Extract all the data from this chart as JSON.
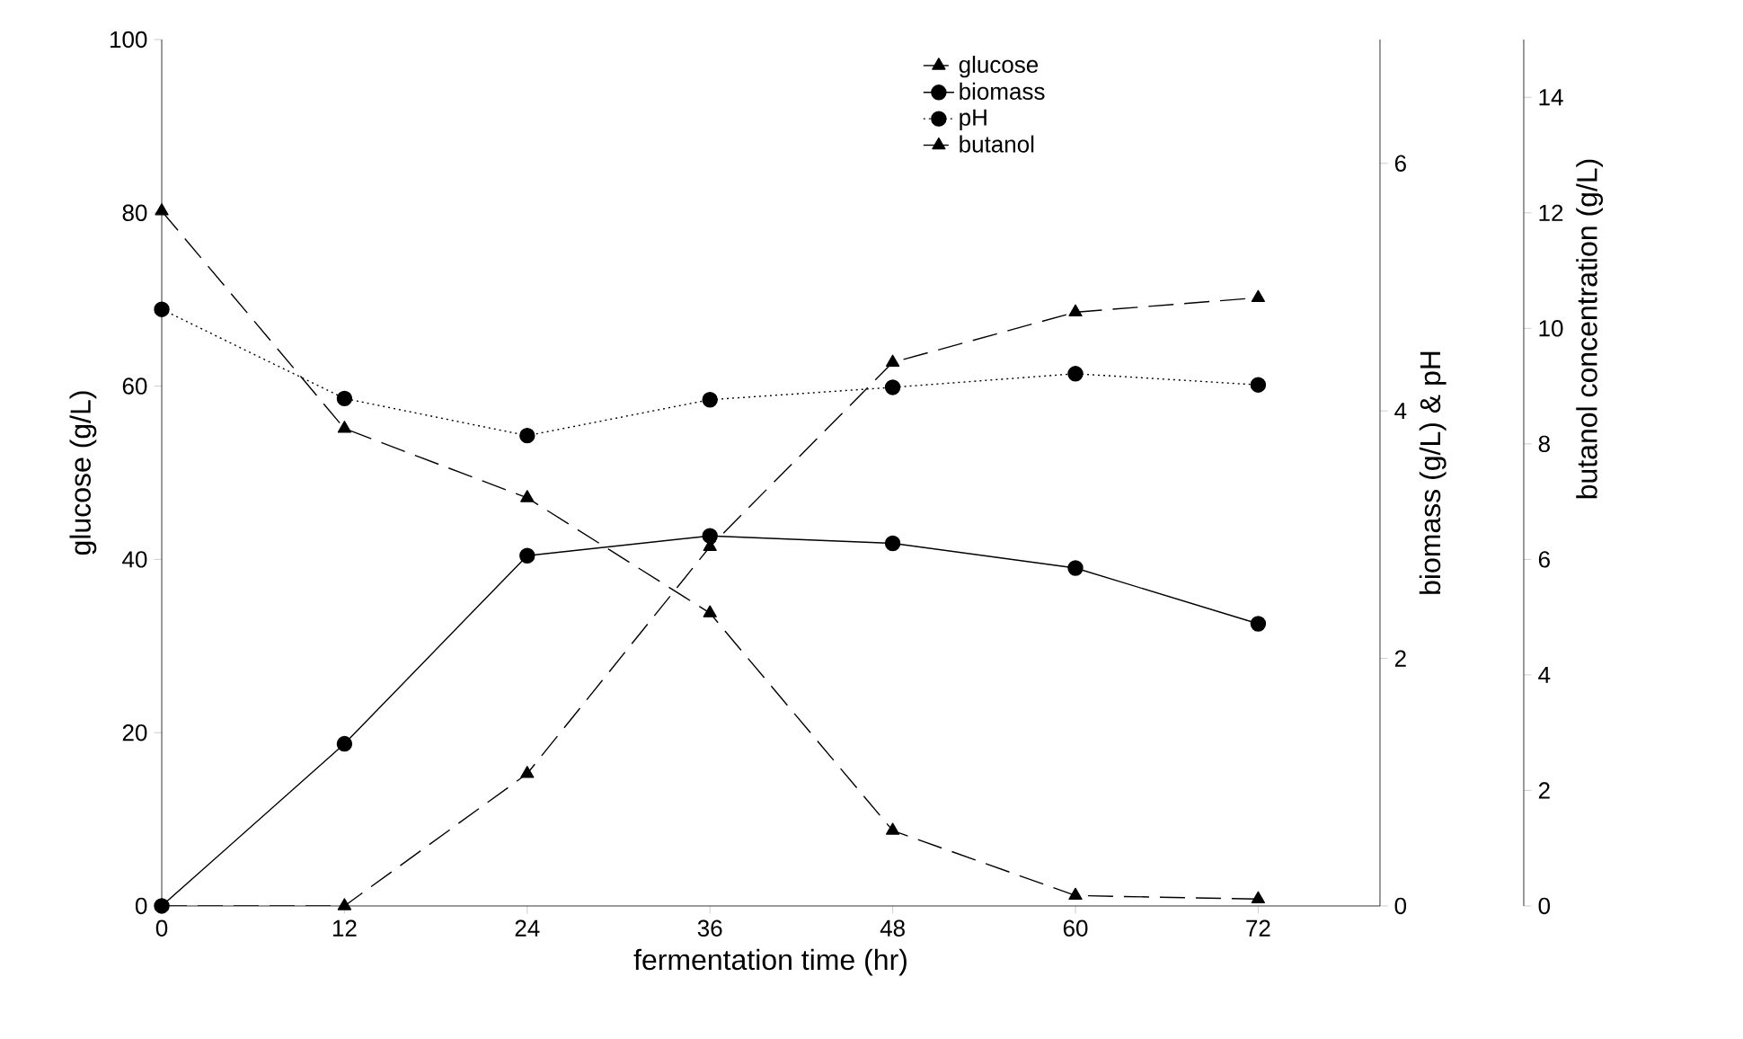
{
  "chart_data": {
    "type": "line",
    "xlabel": "fermentation time (hr)",
    "ylabel": "glucose (g/L)",
    "y2label": "biomass (g/L) & pH",
    "y3label": "butanol concentration (g/L)",
    "x": [
      0,
      12,
      24,
      36,
      48,
      60,
      72
    ],
    "xlim": [
      0,
      80
    ],
    "xticks": [
      0,
      12,
      24,
      36,
      48,
      60,
      72
    ],
    "ylim": [
      0,
      100
    ],
    "yticks": [
      0,
      20,
      40,
      60,
      80,
      100
    ],
    "y2lim": [
      0,
      7
    ],
    "y2ticks": [
      0,
      2,
      4,
      6
    ],
    "y3lim": [
      0,
      15
    ],
    "y3ticks": [
      0,
      2,
      4,
      6,
      8,
      10,
      12,
      14
    ],
    "legend": "top right",
    "grid": false,
    "series": [
      {
        "name": "glucose",
        "color": "#000000",
        "marker": "triangle",
        "line_style": "dashed",
        "values": [
          80.2,
          55.1,
          47.1,
          33.8,
          8.7,
          1.2,
          0.8
        ]
      },
      {
        "name": "biomass",
        "color": "#000000",
        "marker": "circle",
        "line_style": "solid",
        "axis": "y2",
        "values": [
          0,
          1.31,
          2.83,
          2.99,
          2.93,
          2.73,
          2.28
        ]
      },
      {
        "name": "pH",
        "color": "#000000",
        "marker": "circle",
        "line_style": "dotted",
        "axis": "y2",
        "values": [
          4.82,
          4.1,
          3.8,
          4.09,
          4.19,
          4.3,
          4.21
        ]
      },
      {
        "name": "butanol",
        "color": "#000000",
        "marker": "triangle",
        "line_style": "dashed",
        "axis": "y3",
        "values": [
          0,
          0,
          2.29,
          6.22,
          9.41,
          10.28,
          10.53
        ]
      }
    ]
  }
}
